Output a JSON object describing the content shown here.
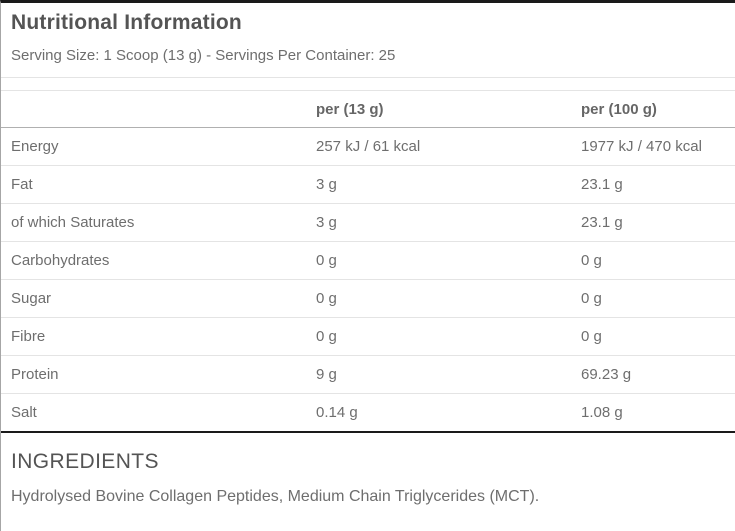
{
  "panel": {
    "title": "Nutritional Information",
    "serving_line": "Serving Size: 1 Scoop (13 g) - Servings Per Container: 25"
  },
  "table": {
    "columns": [
      "",
      "per (13 g)",
      "per (100 g)"
    ],
    "rows": [
      {
        "label": "Energy",
        "per_serving": "257 kJ / 61 kcal",
        "per_100g": "1977 kJ / 470 kcal"
      },
      {
        "label": "Fat",
        "per_serving": "3 g",
        "per_100g": "23.1 g"
      },
      {
        "label": "of which Saturates",
        "per_serving": "3 g",
        "per_100g": "23.1 g"
      },
      {
        "label": "Carbohydrates",
        "per_serving": "0 g",
        "per_100g": "0 g"
      },
      {
        "label": "Sugar",
        "per_serving": "0 g",
        "per_100g": "0 g"
      },
      {
        "label": "Fibre",
        "per_serving": "0 g",
        "per_100g": "0 g"
      },
      {
        "label": "Protein",
        "per_serving": "9 g",
        "per_100g": "69.23 g"
      },
      {
        "label": "Salt",
        "per_serving": "0.14 g",
        "per_100g": "1.08 g"
      }
    ]
  },
  "ingredients": {
    "title": "INGREDIENTS",
    "text": "Hydrolysed Bovine Collagen Peptides, Medium Chain Triglycerides (MCT)."
  },
  "colors": {
    "dark_border": "#1a1a1a",
    "side_border": "#a6a6a6",
    "light_border": "#e4e4e4",
    "header_border": "#b0b0b0",
    "heading_text": "#545454",
    "body_text": "#6e6e6e",
    "header_text": "#666666"
  }
}
